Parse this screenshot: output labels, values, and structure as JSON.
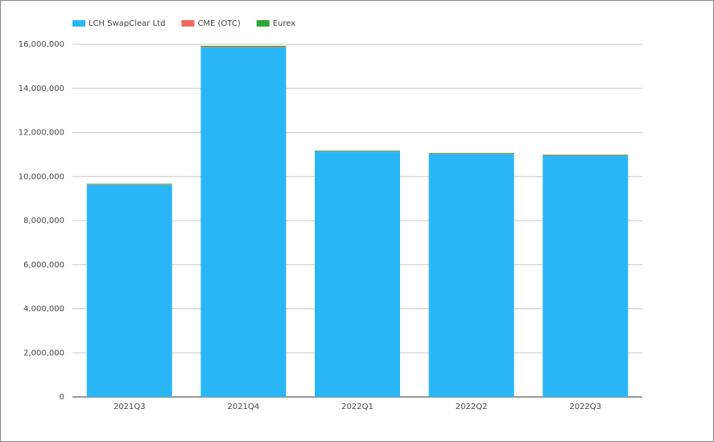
{
  "chart_data": {
    "type": "stacked-bar",
    "categories": [
      "2021Q3",
      "2021Q4",
      "2022Q1",
      "2022Q2",
      "2022Q3"
    ],
    "series": [
      {
        "name": "LCH SwapClear Ltd",
        "color": "#29b6f6",
        "values": [
          9620000,
          15860000,
          11130000,
          11020000,
          10940000
        ]
      },
      {
        "name": "CME (OTC)",
        "color": "#f0695c",
        "values": [
          20000,
          30000,
          20000,
          20000,
          20000
        ]
      },
      {
        "name": "Eurex",
        "color": "#2ea83a",
        "values": [
          30000,
          40000,
          30000,
          30000,
          30000
        ]
      }
    ],
    "ylim": [
      0,
      16000000
    ],
    "yticks": [
      0,
      {
        "value": 2000000,
        "label": "2,000,000"
      },
      {
        "value": 4000000,
        "label": "4,000,000"
      },
      {
        "value": 6000000,
        "label": "6,000,000"
      },
      {
        "value": 8000000,
        "label": "8,000,000"
      },
      {
        "value": 10000000,
        "label": "10,000,000"
      },
      {
        "value": 12000000,
        "label": "12,000,000"
      },
      {
        "value": 14000000,
        "label": "14,000,000"
      },
      {
        "value": 16000000,
        "label": "16,000,000"
      }
    ],
    "grid": true,
    "legend": "top-left"
  }
}
